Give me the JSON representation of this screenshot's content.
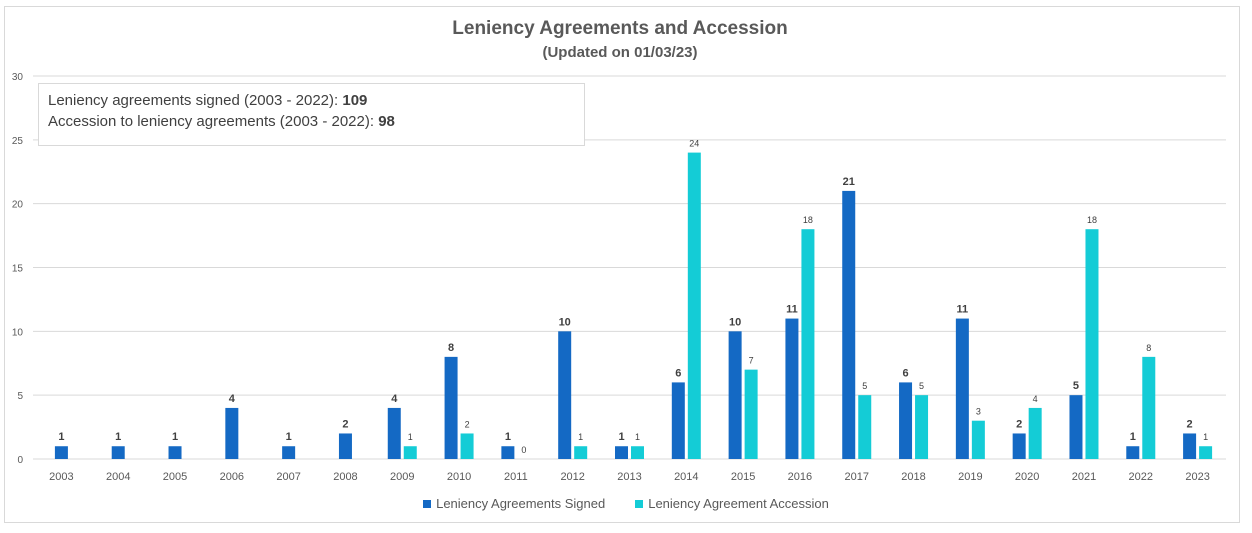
{
  "colors": {
    "signed": "#1469C4",
    "accession": "#14CCD6",
    "grid": "#d9d9d9"
  },
  "summary": {
    "signed_label": "Leniency agreements signed (2003 - 2022): ",
    "signed_total": "109",
    "accession_label": "Accession to leniency agreements (2003 - 2022): ",
    "accession_total": "98"
  },
  "chart_data": {
    "type": "bar",
    "title": "Leniency Agreements and Accession",
    "subtitle": "(Updated on 01/03/23)",
    "xlabel": "",
    "ylabel": "",
    "ylim": [
      0,
      30
    ],
    "yticks": [
      0,
      5,
      10,
      15,
      20,
      25,
      30
    ],
    "grid": true,
    "legend_position": "bottom",
    "categories": [
      "2003",
      "2004",
      "2005",
      "2006",
      "2007",
      "2008",
      "2009",
      "2010",
      "2011",
      "2012",
      "2013",
      "2014",
      "2015",
      "2016",
      "2017",
      "2018",
      "2019",
      "2020",
      "2021",
      "2022",
      "2023"
    ],
    "series": [
      {
        "name": "Leniency Agreements Signed",
        "key": "signed",
        "values": [
          1,
          1,
          1,
          4,
          1,
          2,
          4,
          8,
          1,
          10,
          1,
          6,
          10,
          11,
          21,
          6,
          11,
          2,
          5,
          1,
          2
        ]
      },
      {
        "name": "Leniency Agreement Accession",
        "key": "accession",
        "values": [
          null,
          null,
          null,
          null,
          null,
          null,
          1,
          2,
          0,
          1,
          1,
          24,
          7,
          18,
          5,
          5,
          3,
          4,
          18,
          8,
          1
        ]
      }
    ]
  }
}
